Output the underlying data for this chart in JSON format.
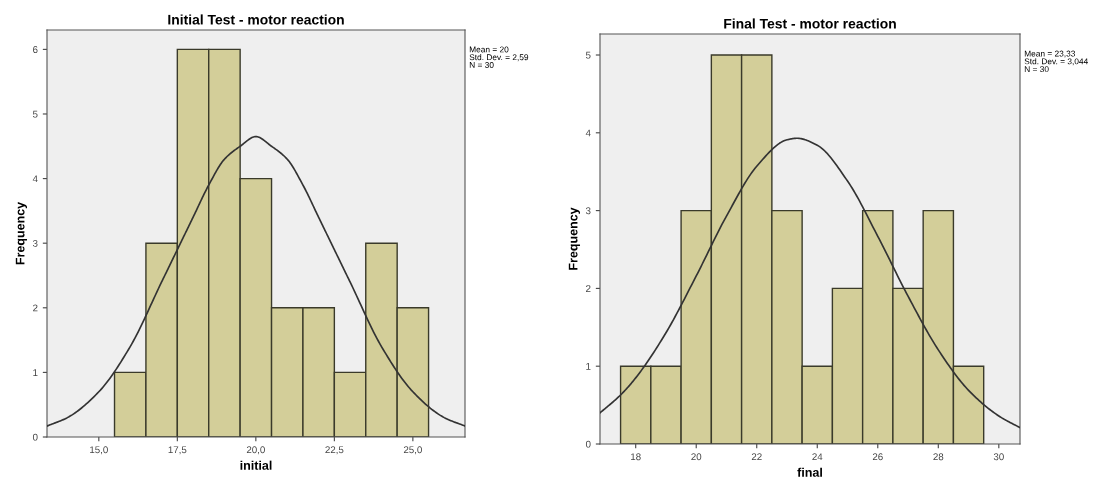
{
  "chart_data": [
    {
      "type": "histogram",
      "title": "Initial Test - motor reaction",
      "xlabel": "initial",
      "ylabel": "Frequency",
      "bins": [
        15.5,
        16.5,
        17.5,
        18.5,
        19.5,
        20.5,
        21.5,
        22.5,
        23.5,
        24.5,
        25.5
      ],
      "values": [
        1,
        3,
        6,
        6,
        4,
        2,
        2,
        1,
        3,
        2
      ],
      "color": "#d3ce99",
      "series": [
        {
          "type": "line",
          "color": "#333333",
          "x": [
            13.35,
            14,
            15,
            16,
            17,
            17.5,
            18,
            18.5,
            19,
            19.5,
            20,
            20.5,
            21,
            21.5,
            22,
            22.5,
            23,
            24,
            25,
            26,
            26.66
          ],
          "values": [
            0.17,
            0.3,
            0.7,
            1.4,
            2.4,
            2.9,
            3.4,
            3.9,
            4.3,
            4.5,
            4.65,
            4.5,
            4.3,
            3.9,
            3.4,
            2.9,
            2.4,
            1.4,
            0.7,
            0.3,
            0.17
          ]
        }
      ],
      "xlim": [
        13.35,
        26.66
      ],
      "ylim": [
        0,
        6.3
      ],
      "xticks": [
        {
          "value": 15,
          "label": "15,0"
        },
        {
          "value": 17.5,
          "label": "17,5"
        },
        {
          "value": 20,
          "label": "20,0"
        },
        {
          "value": 22.5,
          "label": "22,5"
        },
        {
          "value": 25,
          "label": "25,0"
        }
      ],
      "yticks": [
        0,
        1,
        2,
        3,
        4,
        5,
        6
      ],
      "annotations": [
        "Mean = 20\nStd. Dev. = 2,59\nN = 30"
      ]
    },
    {
      "type": "histogram",
      "title": "Final Test - motor reaction",
      "xlabel": "final",
      "ylabel": "Frequency",
      "bins": [
        17.5,
        18.5,
        19.5,
        20.5,
        21.5,
        22.5,
        23.5,
        24.5,
        25.5,
        26.5,
        27.5,
        28.5,
        29.5
      ],
      "values": [
        1,
        1,
        3,
        5,
        5,
        3,
        1,
        2,
        3,
        2,
        3,
        1
      ],
      "color": "#d3ce99",
      "series": [
        {
          "type": "line",
          "color": "#333333",
          "x": [
            16.82,
            17.5,
            18,
            19,
            20,
            21,
            22,
            23,
            23.33,
            24,
            25,
            26,
            27,
            28,
            29,
            30,
            30.7
          ],
          "values": [
            0.4,
            0.63,
            0.85,
            1.43,
            2.16,
            2.93,
            3.57,
            3.91,
            3.93,
            3.84,
            3.38,
            2.67,
            1.9,
            1.21,
            0.69,
            0.36,
            0.21
          ]
        }
      ],
      "xlim": [
        16.82,
        30.7
      ],
      "ylim": [
        0,
        5.27
      ],
      "xticks": [
        18,
        20,
        22,
        24,
        26,
        28,
        30
      ],
      "yticks": [
        0,
        1,
        2,
        3,
        4,
        5
      ],
      "annotations": [
        "Mean = 23,33\nStd. Dev. = 3,044\nN = 30"
      ]
    }
  ]
}
